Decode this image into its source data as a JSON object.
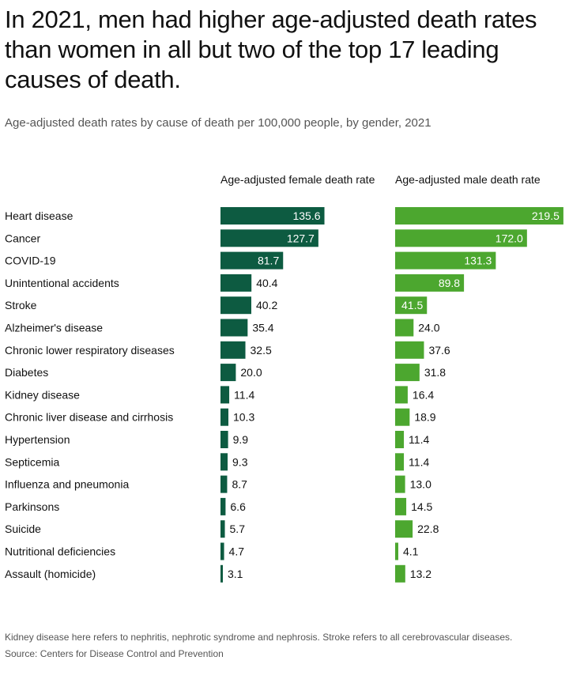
{
  "title": "In 2021, men had higher age-adjusted death rates than women in all but two of the top 17 leading causes of death.",
  "subtitle": "Age-adjusted death rates by cause of death per 100,000 people, by gender, 2021",
  "notes": "Kidney disease here refers to nephritis, nephrotic syndrome and nephrosis. Stroke refers to all cerebrovascular diseases.",
  "source": "Source: Centers for Disease Control and Prevention",
  "chart_data": {
    "type": "bar",
    "orientation": "horizontal",
    "title": "In 2021, men had higher age-adjusted death rates than women in all but two of the top 17 leading causes of death.",
    "subtitle": "Age-adjusted death rates by cause of death per 100,000 people, by gender, 2021",
    "categories": [
      "Heart disease",
      "Cancer",
      "COVID-19",
      "Unintentional accidents",
      "Stroke",
      "Alzheimer's disease",
      "Chronic lower respiratory diseases",
      "Diabetes",
      "Kidney disease",
      "Chronic liver disease and cirrhosis",
      "Hypertension",
      "Septicemia",
      "Influenza and pneumonia",
      "Parkinsons",
      "Suicide",
      "Nutritional deficiencies",
      "Assault (homicide)"
    ],
    "series": [
      {
        "name": "Age-adjusted female death rate",
        "color": "#0d5b41",
        "values": [
          135.6,
          127.7,
          81.7,
          40.4,
          40.2,
          35.4,
          32.5,
          20.0,
          11.4,
          10.3,
          9.9,
          9.3,
          8.7,
          6.6,
          5.7,
          4.7,
          3.1
        ]
      },
      {
        "name": "Age-adjusted male death rate",
        "color": "#4ca72f",
        "values": [
          219.5,
          172.0,
          131.3,
          89.8,
          41.5,
          24.0,
          37.6,
          31.8,
          16.4,
          18.9,
          11.4,
          11.4,
          13.0,
          14.5,
          22.8,
          4.1,
          13.2
        ]
      }
    ],
    "grid": false,
    "legend": "column headers"
  }
}
